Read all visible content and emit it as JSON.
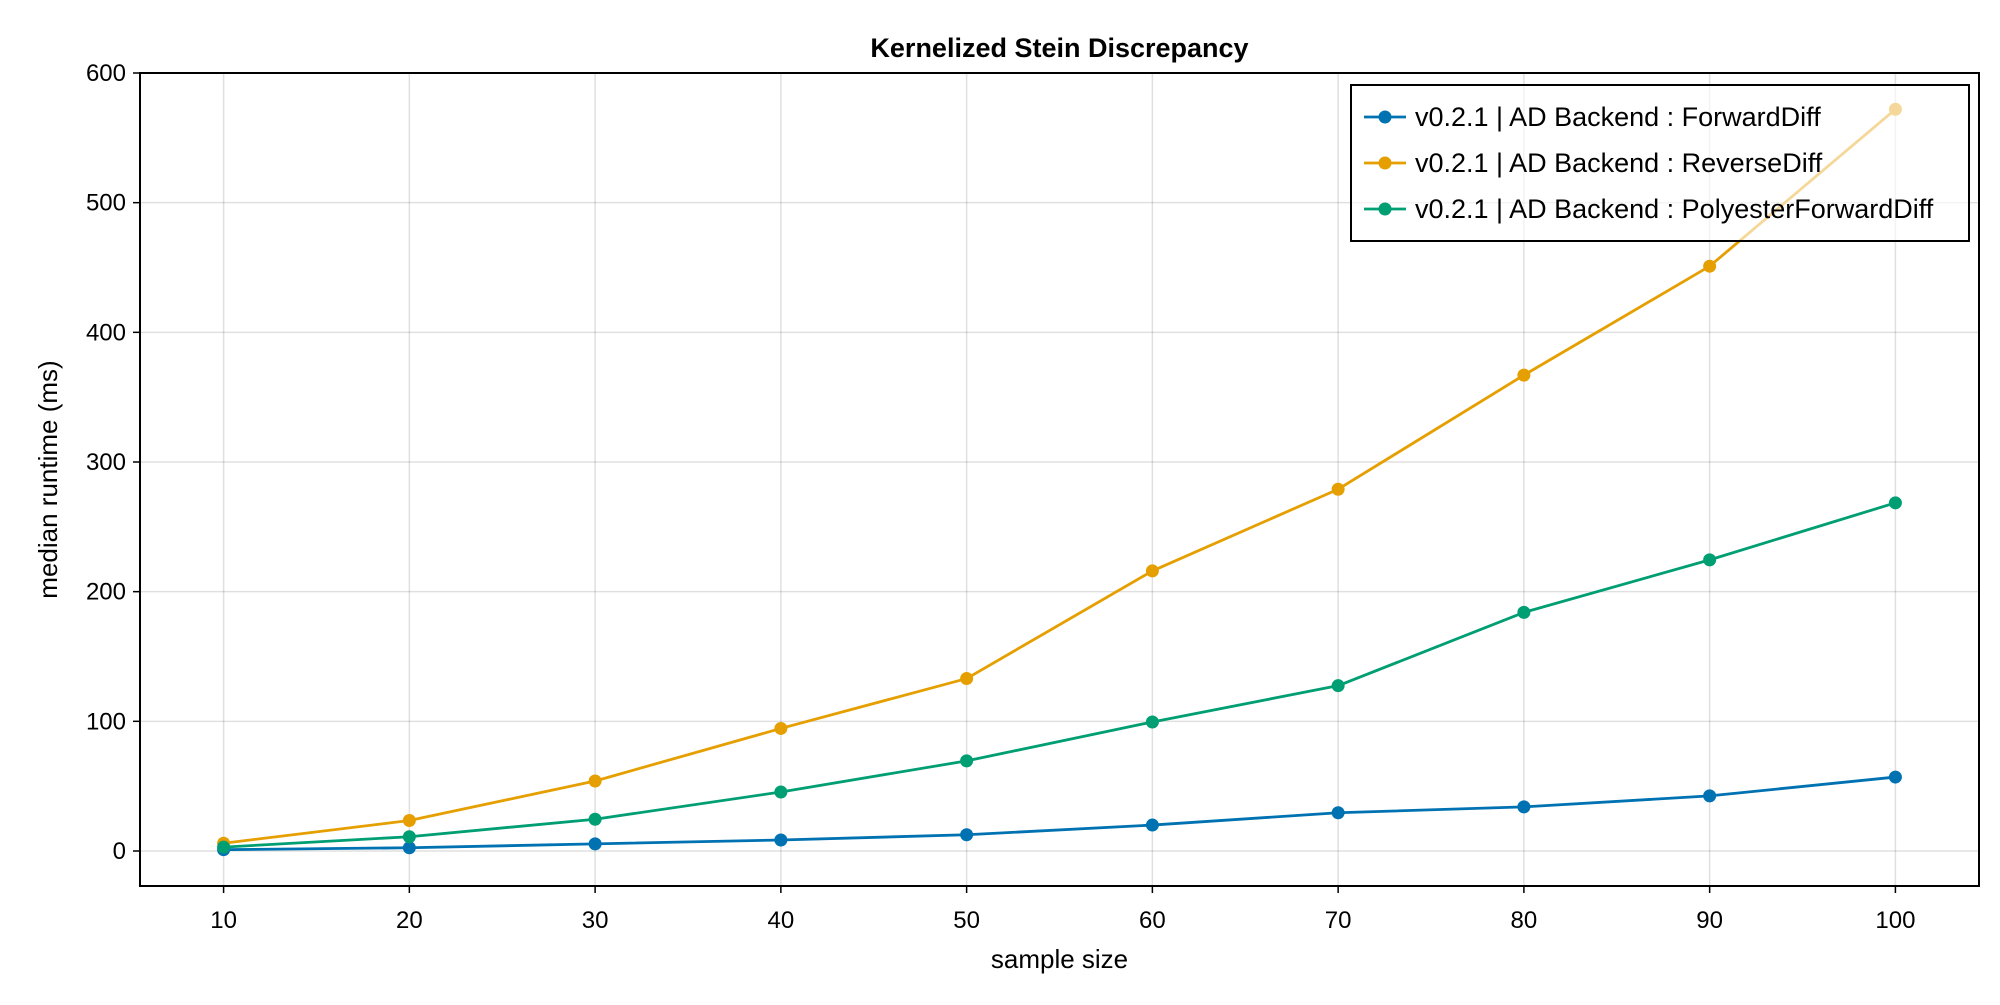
{
  "chart_data": {
    "type": "line",
    "title": "Kernelized Stein Discrepancy",
    "xlabel": "sample size",
    "ylabel": "median runtime (ms)",
    "x": [
      10,
      20,
      30,
      40,
      50,
      60,
      70,
      80,
      90,
      100
    ],
    "xlim": [
      5.5,
      104.5
    ],
    "ylim": [
      -27,
      600
    ],
    "xticks": [
      10,
      20,
      30,
      40,
      50,
      60,
      70,
      80,
      90,
      100
    ],
    "yticks": [
      0,
      100,
      200,
      300,
      400,
      500,
      600
    ],
    "grid": true,
    "legend_position": "top-right",
    "series": [
      {
        "name": "v0.2.1 | AD Backend : ForwardDiff",
        "color": "#0072b2",
        "values": [
          1,
          2.5,
          5.5,
          8.5,
          12.5,
          20,
          29.5,
          34,
          42.5,
          57
        ]
      },
      {
        "name": "v0.2.1 | AD Backend : ReverseDiff",
        "color": "#e69f00",
        "values": [
          6,
          23.5,
          54,
          94.5,
          133,
          216,
          279,
          367,
          451,
          572
        ]
      },
      {
        "name": "v0.2.1 | AD Backend : PolyesterForwardDiff",
        "color": "#009e73",
        "values": [
          3,
          11,
          24.5,
          45.5,
          69.5,
          99.5,
          127.5,
          184,
          224.5,
          268.5
        ]
      }
    ]
  }
}
